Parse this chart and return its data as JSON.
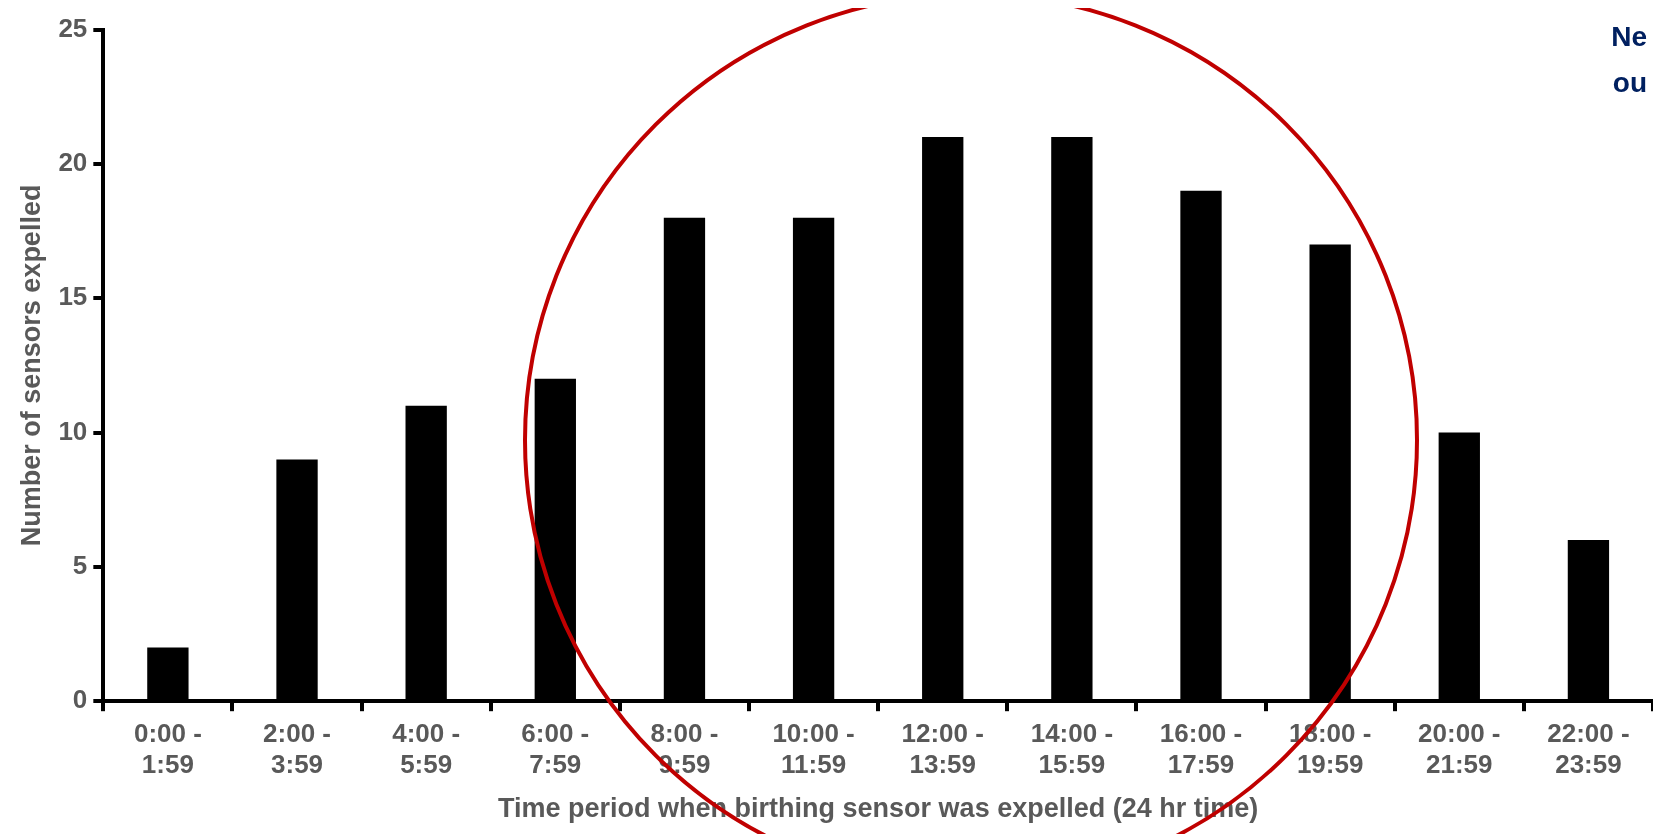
{
  "chart_data": {
    "type": "bar",
    "xlabel": "Time period when birthing sensor was expelled (24 hr time)",
    "ylabel": "Number of sensors expelled",
    "categories": [
      "0:00 - 1:59",
      "2:00 - 3:59",
      "4:00 - 5:59",
      "6:00 - 7:59",
      "8:00 - 9:59",
      "10:00 - 11:59",
      "12:00 - 13:59",
      "14:00 - 15:59",
      "16:00 - 17:59",
      "18:00 - 19:59",
      "20:00 - 21:59",
      "22:00 - 23:59"
    ],
    "values": [
      2,
      9,
      11,
      12,
      18,
      18,
      21,
      21,
      19,
      17,
      10,
      6
    ],
    "color": "#000000",
    "ylim": [
      0,
      25
    ],
    "yticks": [
      0,
      5,
      10,
      15,
      20,
      25
    ],
    "grid": false,
    "legend": false,
    "annotations": [
      "Ne",
      "ou"
    ]
  }
}
